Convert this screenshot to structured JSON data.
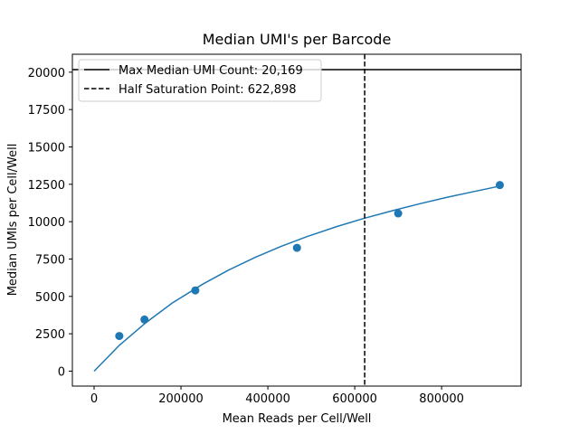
{
  "chart_data": {
    "type": "scatter",
    "title": "Median UMI's per Barcode",
    "xlabel": "Mean Reads per Cell/Well",
    "ylabel": "Median UMIs per Cell/Well",
    "xlim": [
      -50000,
      983000
    ],
    "ylim": [
      -1000,
      21200
    ],
    "xticks": [
      0,
      200000,
      400000,
      600000,
      800000
    ],
    "xtick_labels": [
      "0",
      "200000",
      "400000",
      "600000",
      "800000"
    ],
    "yticks": [
      0,
      2500,
      5000,
      7500,
      10000,
      12500,
      15000,
      17500,
      20000
    ],
    "ytick_labels": [
      "0",
      "2500",
      "5000",
      "7500",
      "10000",
      "12500",
      "15000",
      "17500",
      "20000"
    ],
    "grid": false,
    "legend_position": "top-left",
    "colors": {
      "series": "#1f77b4",
      "reference": "#000000"
    },
    "series": [
      {
        "type": "scatter",
        "x": [
          58000,
          116000,
          233000,
          467000,
          700000,
          934000
        ],
        "y": [
          2350,
          3450,
          5400,
          8250,
          10550,
          12450
        ]
      },
      {
        "type": "line",
        "x": [
          0,
          58000,
          120000,
          180000,
          250000,
          310000,
          370000,
          430000,
          490000,
          560000,
          620000,
          690000,
          750000,
          810000,
          870000,
          934000
        ],
        "y": [
          0,
          1730,
          3260,
          4560,
          5820,
          6770,
          7600,
          8340,
          9000,
          9680,
          10210,
          10760,
          11200,
          11610,
          11990,
          12380
        ]
      }
    ],
    "reference_lines": [
      {
        "orientation": "horizontal",
        "value": 20169,
        "style": "solid",
        "label": "Max Median UMI Count: 20,169"
      },
      {
        "orientation": "vertical",
        "value": 622898,
        "style": "dashed",
        "label": "Half Saturation Point: 622,898"
      }
    ]
  }
}
